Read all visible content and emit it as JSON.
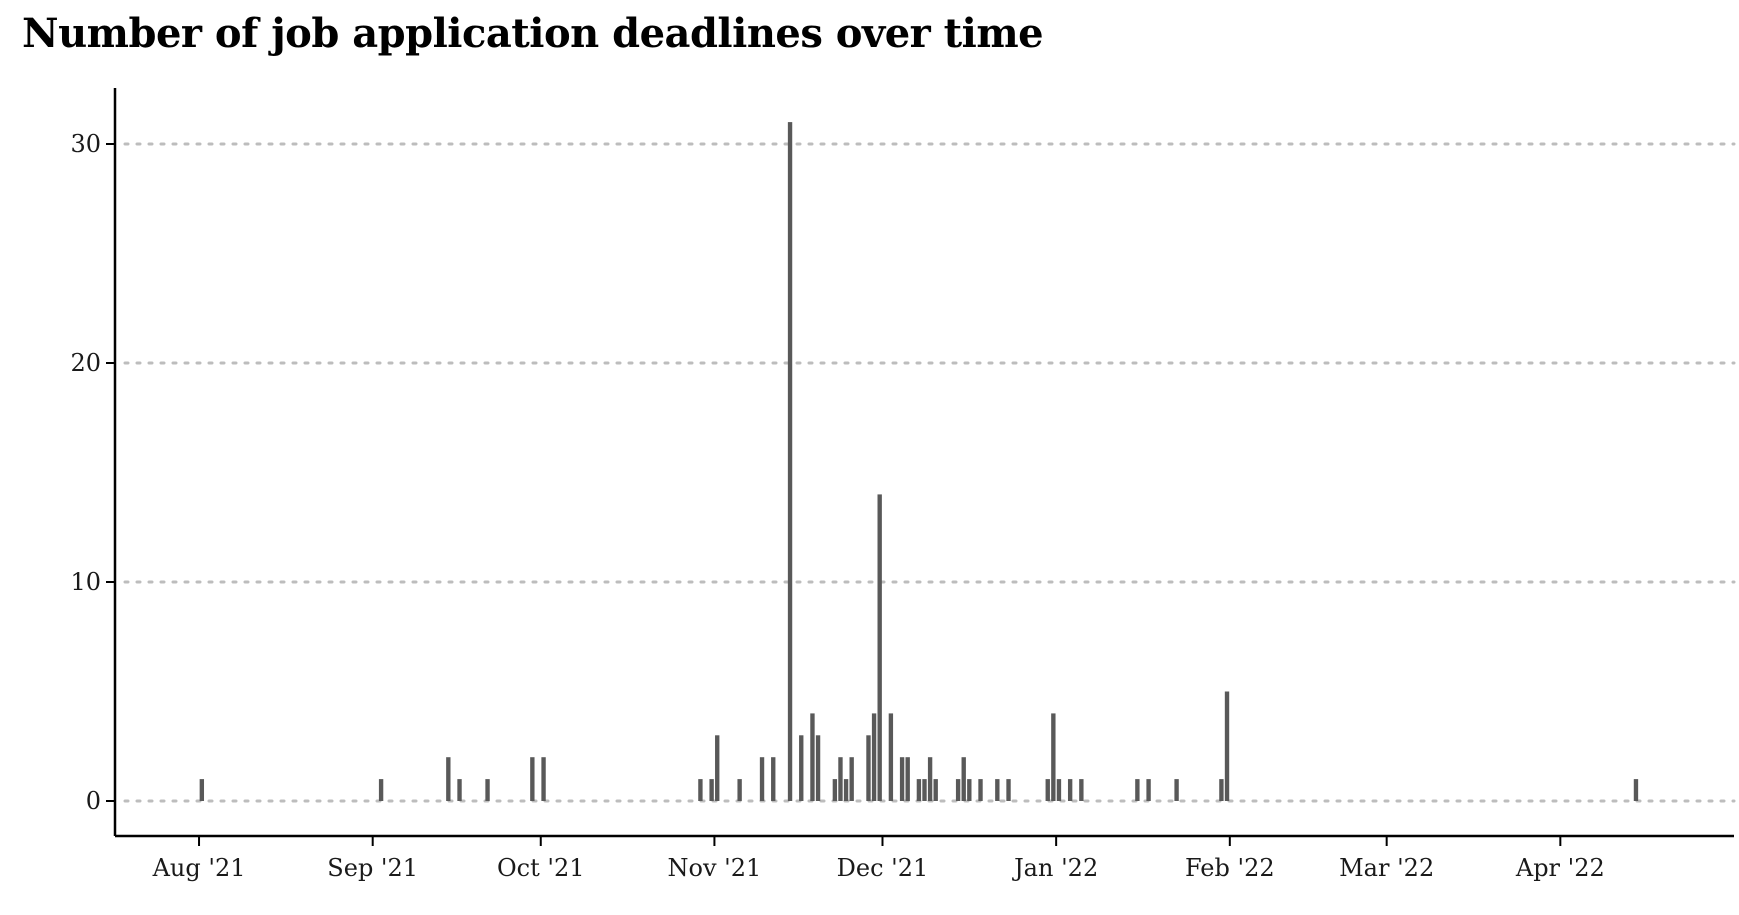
{
  "chart_data": {
    "type": "bar",
    "title": "Number of job application deadlines over time",
    "xlabel": "",
    "ylabel": "",
    "ylim": [
      0,
      31
    ],
    "xlim": [
      "2021-07-17",
      "2022-05-02"
    ],
    "grid": {
      "horizontal": true,
      "vertical": false,
      "style": "dotted"
    },
    "legend": "none",
    "bar_color": "#595959",
    "grid_color": "#bdbdbd",
    "y_ticks": [
      {
        "value": 0,
        "label": "0"
      },
      {
        "value": 10,
        "label": "10"
      },
      {
        "value": 20,
        "label": "20"
      },
      {
        "value": 30,
        "label": "30"
      }
    ],
    "x_ticks": [
      {
        "date": "2021-08-01",
        "label": "Aug '21"
      },
      {
        "date": "2021-09-01",
        "label": "Sep '21"
      },
      {
        "date": "2021-10-01",
        "label": "Oct '21"
      },
      {
        "date": "2021-11-01",
        "label": "Nov '21"
      },
      {
        "date": "2021-12-01",
        "label": "Dec '21"
      },
      {
        "date": "2022-01-01",
        "label": "Jan '22"
      },
      {
        "date": "2022-02-01",
        "label": "Feb '22"
      },
      {
        "date": "2022-03-01",
        "label": "Mar '22"
      },
      {
        "date": "2022-04-01",
        "label": "Apr '22"
      }
    ],
    "x": [
      "2021-08-01",
      "2021-09-02",
      "2021-09-14",
      "2021-09-16",
      "2021-09-21",
      "2021-09-29",
      "2021-10-01",
      "2021-10-29",
      "2021-10-31",
      "2021-11-01",
      "2021-11-05",
      "2021-11-09",
      "2021-11-11",
      "2021-11-14",
      "2021-11-16",
      "2021-11-18",
      "2021-11-19",
      "2021-11-22",
      "2021-11-23",
      "2021-11-24",
      "2021-11-25",
      "2021-11-28",
      "2021-11-29",
      "2021-11-30",
      "2021-12-02",
      "2021-12-04",
      "2021-12-05",
      "2021-12-07",
      "2021-12-08",
      "2021-12-09",
      "2021-12-10",
      "2021-12-14",
      "2021-12-15",
      "2021-12-16",
      "2021-12-18",
      "2021-12-21",
      "2021-12-23",
      "2021-12-30",
      "2021-12-31",
      "2022-01-01",
      "2022-01-03",
      "2022-01-05",
      "2022-01-15",
      "2022-01-17",
      "2022-01-22",
      "2022-01-30",
      "2022-01-31",
      "2022-04-14"
    ],
    "values": [
      1,
      1,
      2,
      1,
      1,
      2,
      2,
      1,
      1,
      3,
      1,
      2,
      2,
      31,
      3,
      4,
      3,
      1,
      2,
      1,
      2,
      3,
      4,
      14,
      4,
      2,
      2,
      1,
      1,
      2,
      1,
      1,
      2,
      1,
      1,
      1,
      1,
      1,
      4,
      1,
      1,
      1,
      1,
      1,
      1,
      1,
      5,
      1
    ]
  }
}
